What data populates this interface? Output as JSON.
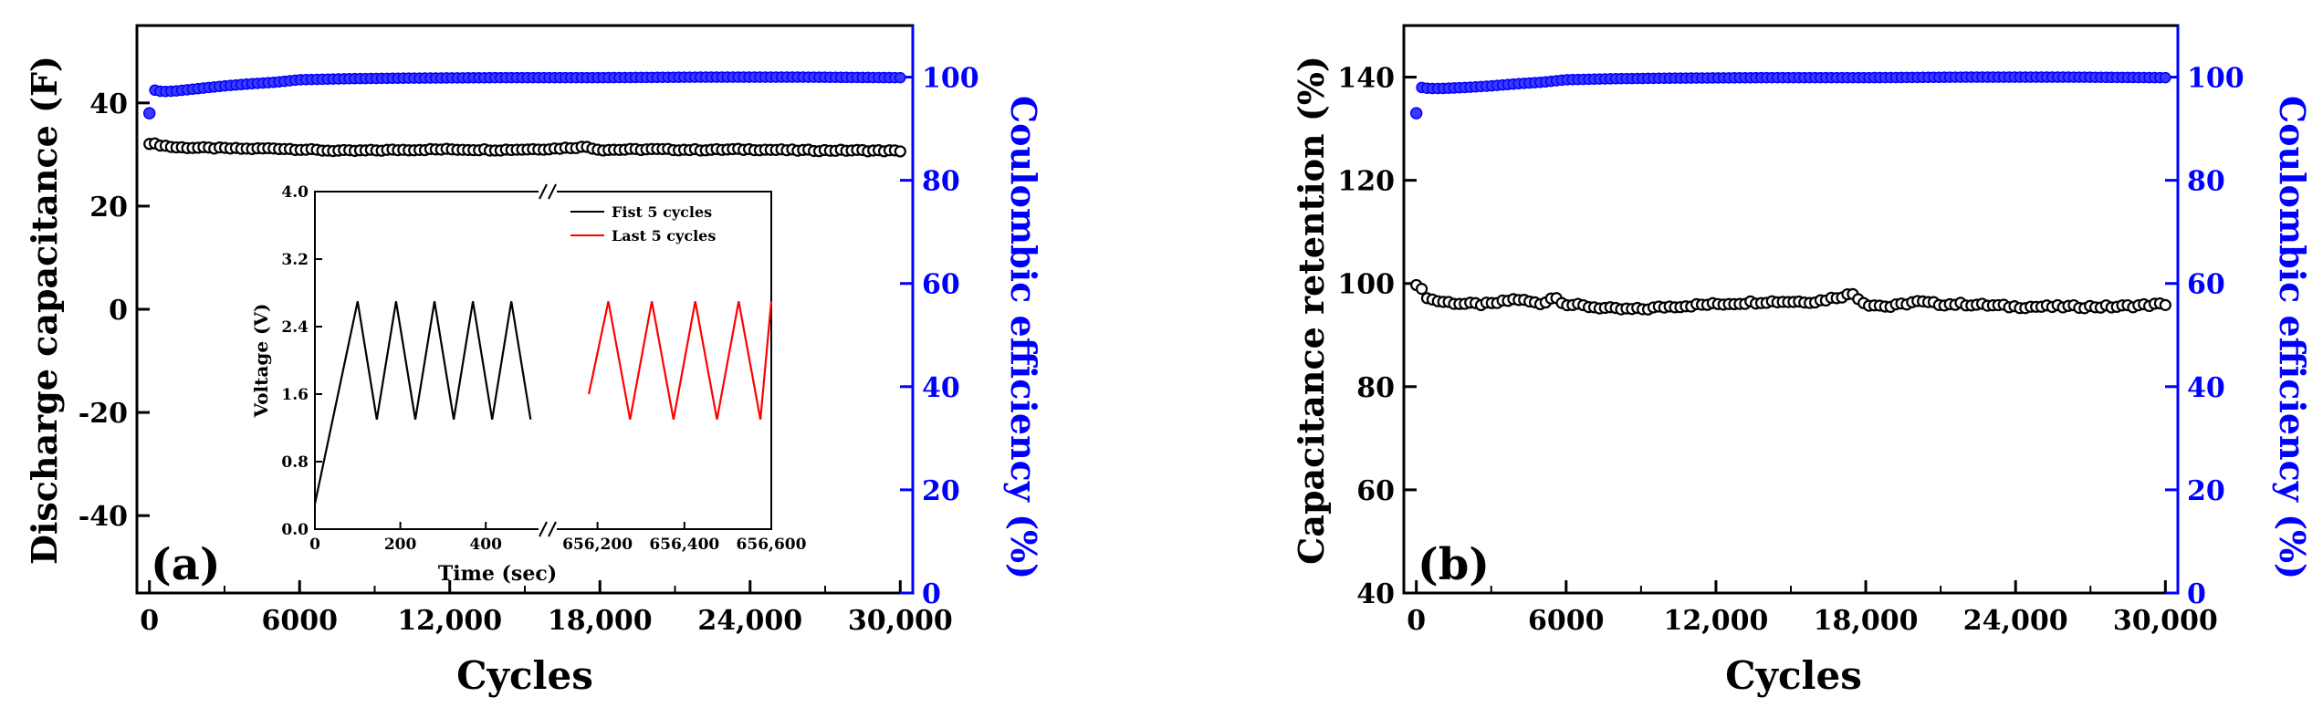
{
  "chart_data": [
    {
      "id": "a",
      "type": "scatter",
      "panel_label": "(a)",
      "xlabel": "Cycles",
      "ylabel": "Discharge capacitance (F)",
      "y2label": "Coulombic efficiency (%)",
      "xlim": [
        -500,
        30500
      ],
      "ylim": [
        -55,
        55
      ],
      "y2lim": [
        0,
        110
      ],
      "xticks": [
        0,
        6000,
        12000,
        18000,
        24000,
        30000
      ],
      "xtick_labels": [
        "0",
        "6000",
        "12,000",
        "18,000",
        "24,000",
        "30,000"
      ],
      "yticks": [
        -40,
        -20,
        0,
        20,
        40
      ],
      "ytick_labels": [
        "-40",
        "-20",
        "0",
        "20",
        "40"
      ],
      "y2ticks": [
        0,
        20,
        40,
        60,
        80,
        100
      ],
      "y2tick_labels": [
        "0",
        "20",
        "40",
        "60",
        "80",
        "100"
      ],
      "series": [
        {
          "name": "Discharge capacitance",
          "axis": "left",
          "color": "#000000",
          "x": [
            0,
            1000,
            2000,
            3000,
            4000,
            5000,
            6000,
            7000,
            8000,
            9000,
            10000,
            12000,
            14000,
            16000,
            17500,
            18000,
            20000,
            22000,
            24000,
            26000,
            28000,
            30000
          ],
          "values": [
            32.2,
            31.4,
            31.3,
            31.2,
            31.1,
            31.2,
            31.0,
            30.8,
            30.7,
            30.8,
            30.9,
            31.0,
            30.9,
            31.1,
            31.5,
            30.9,
            31.0,
            30.9,
            31.0,
            30.8,
            30.8,
            30.7
          ]
        },
        {
          "name": "Coulombic efficiency",
          "axis": "right",
          "color": "#0000ff",
          "x": [
            0,
            200,
            500,
            1000,
            2000,
            3000,
            4000,
            5000,
            6000,
            7000,
            8000,
            10000,
            14000,
            18000,
            22000,
            26000,
            30000
          ],
          "values": [
            93,
            97.5,
            97.2,
            97.3,
            97.8,
            98.3,
            98.7,
            99.0,
            99.5,
            99.6,
            99.7,
            99.8,
            99.9,
            99.9,
            100.0,
            100.0,
            99.9
          ]
        }
      ],
      "inset": {
        "type": "line",
        "xlabel": "Time (sec)",
        "ylabel": "Voltage (V)",
        "ylim": [
          0,
          4
        ],
        "yticks": [
          0.0,
          0.8,
          1.6,
          2.4,
          3.2,
          4.0
        ],
        "ytick_labels": [
          "0.0",
          "0.8",
          "1.6",
          "2.4",
          "3.2",
          "4.0"
        ],
        "segment1": {
          "xlim": [
            0,
            530
          ],
          "xticks": [
            0,
            200,
            400
          ],
          "xtick_labels": [
            "0",
            "200",
            "400"
          ]
        },
        "segment2": {
          "xlim": [
            656100,
            656600
          ],
          "xticks": [
            656200,
            656400,
            656600
          ],
          "xtick_labels": [
            "656,200",
            "656,400",
            "656,600"
          ]
        },
        "legend": [
          "Fist 5 cycles",
          "Last 5 cycles"
        ],
        "series": [
          {
            "name": "Fist 5 cycles",
            "color": "#000000",
            "x": [
              0,
              100,
              145,
              190,
              235,
              280,
              325,
              370,
              415,
              460,
              505
            ],
            "values": [
              0.3,
              2.7,
              1.3,
              2.7,
              1.3,
              2.7,
              1.3,
              2.7,
              1.3,
              2.7,
              1.3
            ]
          },
          {
            "name": "Last 5 cycles",
            "color": "#ff0000",
            "x": [
              656180,
              656225,
              656275,
              656325,
              656375,
              656425,
              656475,
              656525,
              656575,
              656615
            ],
            "values": [
              1.6,
              2.7,
              1.3,
              2.7,
              1.3,
              2.7,
              1.3,
              2.7,
              1.3,
              2.7
            ]
          }
        ]
      }
    },
    {
      "id": "b",
      "type": "scatter",
      "panel_label": "(b)",
      "xlabel": "Cycles",
      "ylabel": "Capacitance retention (%)",
      "y2label": "Coulombic efficiency (%)",
      "xlim": [
        -500,
        30500
      ],
      "ylim": [
        40,
        150
      ],
      "y2lim": [
        0,
        110
      ],
      "xticks": [
        0,
        6000,
        12000,
        18000,
        24000,
        30000
      ],
      "xtick_labels": [
        "0",
        "6000",
        "12,000",
        "18,000",
        "24,000",
        "30,000"
      ],
      "yticks": [
        40,
        60,
        80,
        100,
        120,
        140
      ],
      "ytick_labels": [
        "40",
        "60",
        "80",
        "100",
        "120",
        "140"
      ],
      "y2ticks": [
        0,
        20,
        40,
        60,
        80,
        100
      ],
      "y2tick_labels": [
        "0",
        "20",
        "40",
        "60",
        "80",
        "100"
      ],
      "series": [
        {
          "name": "Capacitance retention",
          "axis": "left",
          "color": "#000000",
          "x": [
            0,
            500,
            1000,
            2000,
            3000,
            4000,
            5000,
            5500,
            6000,
            7000,
            8000,
            9000,
            10000,
            12000,
            14000,
            16000,
            17500,
            18000,
            19000,
            20000,
            21000,
            22000,
            24000,
            26000,
            28000,
            30000
          ],
          "values": [
            100,
            97,
            96.5,
            96,
            96,
            97,
            96,
            97.5,
            96,
            95.5,
            95,
            95,
            95.5,
            96,
            96.5,
            96.5,
            98,
            96,
            95.5,
            96.5,
            96,
            96,
            95.5,
            95.5,
            95.5,
            96
          ]
        },
        {
          "name": "Coulombic efficiency",
          "axis": "right",
          "color": "#0000ff",
          "x": [
            0,
            200,
            500,
            1000,
            2000,
            3000,
            4000,
            5000,
            6000,
            7000,
            8000,
            10000,
            14000,
            18000,
            22000,
            26000,
            30000
          ],
          "values": [
            93,
            98,
            97.8,
            97.8,
            98.0,
            98.3,
            98.7,
            99.0,
            99.5,
            99.6,
            99.7,
            99.8,
            99.9,
            99.9,
            100.0,
            100.0,
            99.9
          ]
        }
      ]
    }
  ]
}
